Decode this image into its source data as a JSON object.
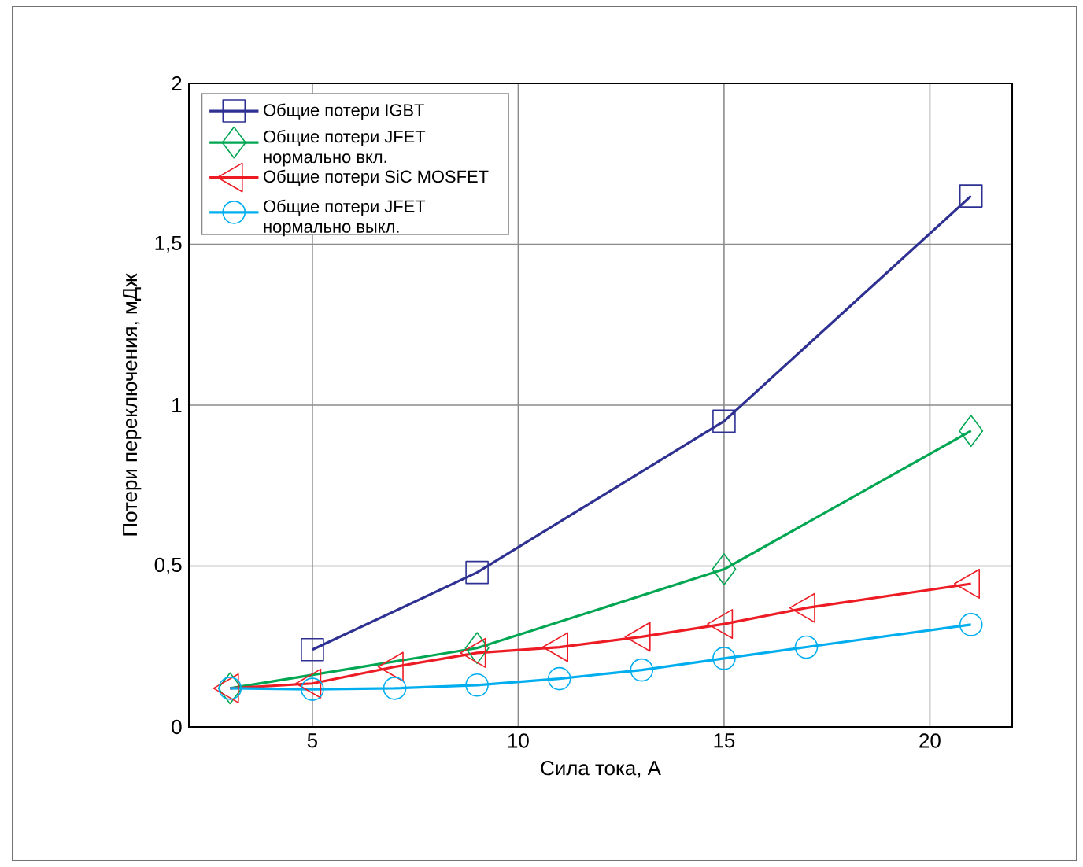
{
  "chart_data": {
    "type": "line",
    "xlabel": "Сила тока, А",
    "ylabel": "Потери переключения, мДж",
    "xlim": [
      2,
      22
    ],
    "xticks": [
      5,
      10,
      15,
      20
    ],
    "ylim": [
      0,
      2
    ],
    "yticks": [
      0,
      {
        "value": 0.5,
        "label": "0,5"
      },
      1,
      {
        "value": 1.5,
        "label": "1,5"
      },
      2
    ],
    "grid": true,
    "legend": "top left",
    "series": [
      {
        "name": "Общие потери IGBT",
        "color": "#2e3192",
        "marker": "square",
        "x": [
          5,
          9,
          15,
          21
        ],
        "values": [
          0.24,
          0.48,
          0.95,
          1.65
        ]
      },
      {
        "name": "Общие потери JFET нормально вкл.",
        "color": "#00a651",
        "marker": "diamond",
        "x": [
          3,
          9,
          15,
          21
        ],
        "values": [
          0.12,
          0.245,
          0.49,
          0.92
        ]
      },
      {
        "name": "Общие потери SiC MOSFET",
        "color": "#ed1c24",
        "marker": "triangle",
        "x": [
          3,
          5,
          7,
          9,
          11,
          13,
          15,
          17,
          21
        ],
        "values": [
          0.12,
          0.135,
          0.187,
          0.23,
          0.248,
          0.28,
          0.32,
          0.37,
          0.445
        ]
      },
      {
        "name": "Общие потери JFET нормально выкл.",
        "color": "#00aeef",
        "marker": "circle",
        "x": [
          3,
          5,
          7,
          9,
          11,
          13,
          15,
          17,
          21
        ],
        "values": [
          0.12,
          0.117,
          0.12,
          0.13,
          0.15,
          0.177,
          0.213,
          0.248,
          0.318
        ]
      }
    ]
  }
}
